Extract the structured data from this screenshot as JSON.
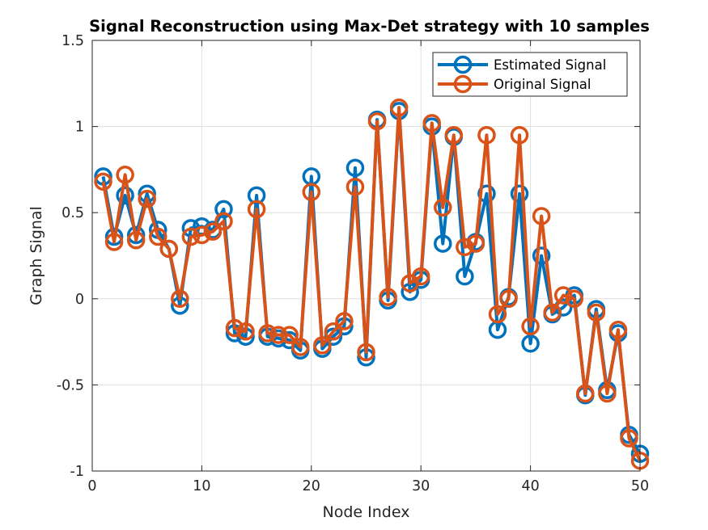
{
  "chart_data": {
    "type": "line",
    "title": "Signal Reconstruction using Max-Det strategy with 10 samples",
    "xlabel": "Node Index",
    "ylabel": "Graph Signal",
    "xlim": [
      0,
      50
    ],
    "ylim": [
      -1,
      1.5
    ],
    "x_ticks": [
      0,
      10,
      20,
      30,
      40,
      50
    ],
    "x_tick_labels": [
      "0",
      "10",
      "20",
      "30",
      "40",
      "50"
    ],
    "y_ticks": [
      -1,
      -0.5,
      0,
      0.5,
      1,
      1.5
    ],
    "y_tick_labels": [
      "-1",
      "-0.5",
      "0",
      "0.5",
      "1",
      "1.5"
    ],
    "grid": true,
    "legend_position": "top-right",
    "x": [
      1,
      2,
      3,
      4,
      5,
      6,
      7,
      8,
      9,
      10,
      11,
      12,
      13,
      14,
      15,
      16,
      17,
      18,
      19,
      20,
      21,
      22,
      23,
      24,
      25,
      26,
      27,
      28,
      29,
      30,
      31,
      32,
      33,
      34,
      35,
      36,
      37,
      38,
      39,
      40,
      41,
      42,
      43,
      44,
      45,
      46,
      47,
      48,
      49,
      50
    ],
    "series": [
      {
        "name": "Estimated Signal",
        "color": "#0072BD",
        "marker": "circle",
        "values": [
          0.71,
          0.36,
          0.6,
          0.37,
          0.61,
          0.4,
          0.29,
          -0.04,
          0.41,
          0.42,
          0.4,
          0.52,
          -0.2,
          -0.22,
          0.6,
          -0.22,
          -0.23,
          -0.24,
          -0.3,
          0.71,
          -0.29,
          -0.22,
          -0.16,
          0.76,
          -0.34,
          1.04,
          -0.01,
          1.09,
          0.04,
          0.11,
          1.0,
          0.32,
          0.94,
          0.13,
          0.33,
          0.61,
          -0.18,
          0.01,
          0.61,
          -0.26,
          0.25,
          -0.09,
          -0.05,
          0.02,
          -0.56,
          -0.06,
          -0.53,
          -0.2,
          -0.79,
          -0.9
        ]
      },
      {
        "name": "Original Signal",
        "color": "#D95319",
        "marker": "circle",
        "values": [
          0.68,
          0.33,
          0.72,
          0.34,
          0.58,
          0.36,
          0.29,
          0.0,
          0.36,
          0.37,
          0.39,
          0.45,
          -0.17,
          -0.19,
          0.52,
          -0.2,
          -0.21,
          -0.21,
          -0.28,
          0.62,
          -0.27,
          -0.19,
          -0.13,
          0.65,
          -0.31,
          1.03,
          0.01,
          1.11,
          0.09,
          0.13,
          1.02,
          0.53,
          0.95,
          0.3,
          0.32,
          0.95,
          -0.09,
          0.0,
          0.95,
          -0.16,
          0.48,
          -0.08,
          0.02,
          0.0,
          -0.55,
          -0.08,
          -0.55,
          -0.18,
          -0.81,
          -0.94
        ]
      }
    ]
  }
}
